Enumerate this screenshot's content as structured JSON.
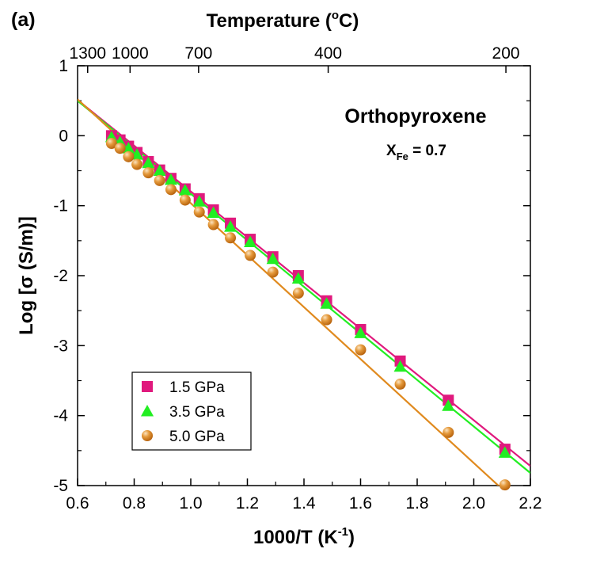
{
  "chart_data": {
    "type": "scatter",
    "panel_label": "(a)",
    "xlabel": {
      "main": "1000/T (K",
      "sup": "-1",
      "tail": ")"
    },
    "ylabel": "Log [σ (S/m)]",
    "top_axis": {
      "title_main": "Temperature (",
      "title_sup": "o",
      "title_tail": "C)",
      "ticks": [
        {
          "celsius": 1300,
          "label": "1300"
        },
        {
          "celsius": 1000,
          "label": "1000"
        },
        {
          "celsius": 700,
          "label": "700"
        },
        {
          "celsius": 400,
          "label": "400"
        },
        {
          "celsius": 200,
          "label": "200"
        }
      ]
    },
    "xlim": [
      0.6,
      2.2
    ],
    "ylim": [
      -5,
      1
    ],
    "xticks": [
      0.6,
      0.8,
      1.0,
      1.2,
      1.4,
      1.6,
      1.8,
      2.0,
      2.2
    ],
    "xtick_labels": [
      "0.6",
      "0.8",
      "1.0",
      "1.2",
      "1.4",
      "1.6",
      "1.8",
      "2.0",
      "2.2"
    ],
    "yticks": [
      1,
      0,
      -1,
      -2,
      -3,
      -4,
      -5
    ],
    "ytick_labels": [
      "1",
      "0",
      "-1",
      "-2",
      "-3",
      "-4",
      "-5"
    ],
    "annotation": {
      "title": "Orthopyroxene",
      "xfe_main": "X",
      "xfe_sub": "Fe",
      "xfe_tail": " = 0.7"
    },
    "legend_position": "bottom-left",
    "grid": false,
    "series": [
      {
        "name": "1.5 GPa",
        "marker": "square",
        "color": "#e0197d",
        "fit": {
          "x": [
            0.6,
            2.2
          ],
          "y": [
            0.51,
            -4.72
          ]
        },
        "x": [
          0.72,
          0.75,
          0.78,
          0.81,
          0.85,
          0.89,
          0.93,
          0.98,
          1.03,
          1.08,
          1.14,
          1.21,
          1.29,
          1.38,
          1.48,
          1.6,
          1.74,
          1.91,
          2.11
        ],
        "y": [
          0.0,
          -0.06,
          -0.15,
          -0.24,
          -0.37,
          -0.49,
          -0.61,
          -0.76,
          -0.9,
          -1.06,
          -1.25,
          -1.48,
          -1.73,
          -2.0,
          -2.36,
          -2.77,
          -3.22,
          -3.78,
          -4.48
        ]
      },
      {
        "name": "3.5 GPa",
        "marker": "triangle",
        "color": "#22ee22",
        "fit": {
          "x": [
            0.6,
            2.2
          ],
          "y": [
            0.5,
            -4.82
          ]
        },
        "x": [
          0.72,
          0.75,
          0.78,
          0.81,
          0.85,
          0.89,
          0.93,
          0.98,
          1.03,
          1.08,
          1.14,
          1.21,
          1.29,
          1.38,
          1.48,
          1.6,
          1.74,
          1.91,
          2.11
        ],
        "y": [
          -0.02,
          -0.09,
          -0.18,
          -0.27,
          -0.39,
          -0.5,
          -0.63,
          -0.78,
          -0.94,
          -1.1,
          -1.3,
          -1.52,
          -1.76,
          -2.04,
          -2.4,
          -2.82,
          -3.3,
          -3.86,
          -4.53
        ]
      },
      {
        "name": "5.0 GPa",
        "marker": "sphere",
        "color": "#e08a1e",
        "fit": {
          "x": [
            0.6,
            2.2
          ],
          "y": [
            0.52,
            -5.42
          ]
        },
        "x": [
          0.72,
          0.75,
          0.78,
          0.81,
          0.85,
          0.89,
          0.93,
          0.98,
          1.03,
          1.08,
          1.14,
          1.21,
          1.29,
          1.38,
          1.48,
          1.6,
          1.74,
          1.91,
          2.11
        ],
        "y": [
          -0.11,
          -0.18,
          -0.3,
          -0.41,
          -0.53,
          -0.64,
          -0.77,
          -0.92,
          -1.09,
          -1.27,
          -1.46,
          -1.71,
          -1.95,
          -2.25,
          -2.63,
          -3.06,
          -3.55,
          -4.24,
          -4.99
        ]
      }
    ]
  }
}
